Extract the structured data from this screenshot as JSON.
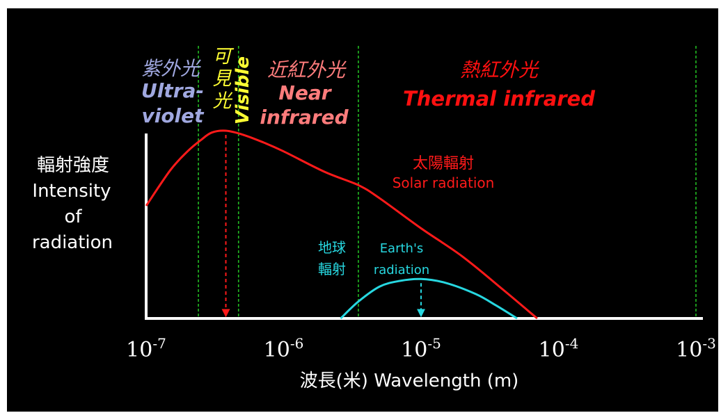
{
  "chart_data": {
    "type": "line",
    "x_scale": "log",
    "xlim": [
      1e-07,
      0.001
    ],
    "x_ticks": [
      {
        "value": 1e-07,
        "base": "10",
        "exp": "-7"
      },
      {
        "value": 1e-06,
        "base": "10",
        "exp": "-6"
      },
      {
        "value": 1e-05,
        "base": "10",
        "exp": "-5"
      },
      {
        "value": 0.0001,
        "base": "10",
        "exp": "-4"
      },
      {
        "value": 0.001,
        "base": "10",
        "exp": "-3"
      }
    ],
    "xlabel": "波長(米)  Wavelength (m)",
    "ylabel": [
      "輻射強度",
      "Intensity",
      "of",
      "radiation"
    ],
    "region_boundaries": [
      2.4e-07,
      4.7e-07,
      3.5e-06,
      0.001
    ],
    "region_lines_color": "#22bb22",
    "regions": [
      {
        "zh": "紫外光",
        "en": [
          "Ultra-",
          "violet"
        ],
        "color": "#a0a8e0"
      },
      {
        "zh": "可見光",
        "en": [
          "Visible"
        ],
        "color": "#ffff33"
      },
      {
        "zh": "近紅外光",
        "en": [
          "Near",
          "infrared"
        ],
        "color": "#ff7c7c"
      },
      {
        "zh": "熱紅外光",
        "en": [
          "Thermal infrared"
        ],
        "color": "#ff1010"
      }
    ],
    "series": [
      {
        "name_zh": "太陽輻射",
        "name_en": "Solar radiation",
        "color": "#ff1a1a",
        "peak": 3.8e-07,
        "x": [
          1e-07,
          1.5e-07,
          2e-07,
          2.5e-07,
          3e-07,
          3.8e-07,
          5e-07,
          7e-07,
          1e-06,
          2e-06,
          3.5e-06,
          5e-06,
          1e-05,
          2e-05,
          4e-05,
          7e-05
        ],
        "y": [
          0.6,
          0.79,
          0.89,
          0.95,
          0.99,
          1.0,
          0.98,
          0.94,
          0.89,
          0.78,
          0.71,
          0.64,
          0.48,
          0.33,
          0.15,
          0.0
        ]
      },
      {
        "name_zh": "地球輻射",
        "name_en": "Earth's radiation",
        "color": "#27d7e0",
        "peak": 1e-05,
        "x": [
          2.6e-06,
          3.5e-06,
          5e-06,
          7e-06,
          1e-05,
          1.5e-05,
          2.5e-05,
          3.5e-05,
          5e-05
        ],
        "y": [
          0.0,
          0.09,
          0.17,
          0.2,
          0.21,
          0.19,
          0.13,
          0.07,
          0.0
        ]
      }
    ]
  }
}
